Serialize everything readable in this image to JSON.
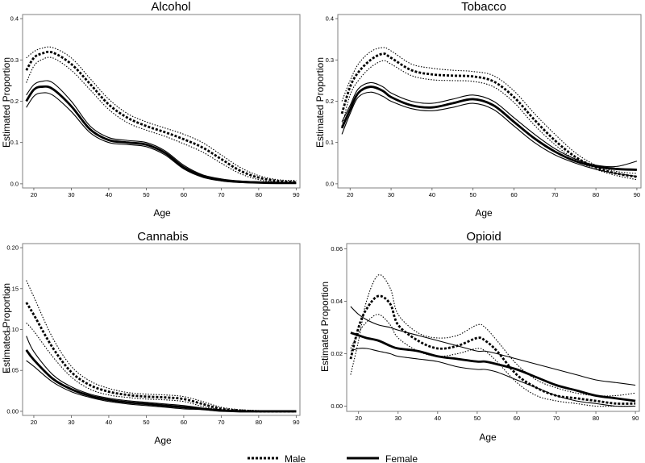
{
  "chart_data": [
    {
      "type": "line",
      "title": "Alcohol",
      "xlabel": "Age",
      "ylabel": "Estimated Proportion",
      "xlim": [
        17,
        91
      ],
      "ylim": [
        -0.01,
        0.41
      ],
      "xticks": [
        20,
        30,
        40,
        50,
        60,
        70,
        80,
        90
      ],
      "yticks": [
        0.0,
        0.1,
        0.2,
        0.3,
        0.4
      ],
      "ytick_labels": [
        "0.0",
        "0.1",
        "0.2",
        "0.3",
        "0.4"
      ],
      "x": [
        18,
        20,
        22,
        25,
        30,
        35,
        40,
        45,
        50,
        55,
        60,
        65,
        70,
        75,
        80,
        85,
        90
      ],
      "series": [
        {
          "name": "Male",
          "band": "upper",
          "values": [
            0.305,
            0.32,
            0.328,
            0.33,
            0.305,
            0.255,
            0.205,
            0.17,
            0.15,
            0.135,
            0.12,
            0.1,
            0.07,
            0.04,
            0.02,
            0.01,
            0.008
          ]
        },
        {
          "name": "Male",
          "band": "estimate",
          "values": [
            0.275,
            0.305,
            0.315,
            0.318,
            0.29,
            0.242,
            0.192,
            0.16,
            0.14,
            0.125,
            0.108,
            0.088,
            0.06,
            0.032,
            0.015,
            0.007,
            0.004
          ]
        },
        {
          "name": "Male",
          "band": "lower",
          "values": [
            0.245,
            0.285,
            0.3,
            0.305,
            0.275,
            0.228,
            0.18,
            0.148,
            0.13,
            0.115,
            0.097,
            0.077,
            0.05,
            0.025,
            0.01,
            0.004,
            0.002
          ]
        },
        {
          "name": "Female",
          "band": "upper",
          "values": [
            0.215,
            0.24,
            0.248,
            0.245,
            0.2,
            0.14,
            0.112,
            0.105,
            0.1,
            0.08,
            0.045,
            0.022,
            0.012,
            0.007,
            0.005,
            0.004,
            0.004
          ]
        },
        {
          "name": "Female",
          "band": "estimate",
          "values": [
            0.2,
            0.228,
            0.235,
            0.23,
            0.188,
            0.132,
            0.106,
            0.1,
            0.095,
            0.075,
            0.04,
            0.019,
            0.009,
            0.005,
            0.003,
            0.002,
            0.002
          ]
        },
        {
          "name": "Female",
          "band": "lower",
          "values": [
            0.185,
            0.212,
            0.22,
            0.215,
            0.175,
            0.124,
            0.1,
            0.095,
            0.09,
            0.07,
            0.036,
            0.016,
            0.007,
            0.003,
            0.002,
            0.001,
            0.001
          ]
        }
      ]
    },
    {
      "type": "line",
      "title": "Tobacco",
      "xlabel": "Age",
      "ylabel": "Estimated Proportion",
      "xlim": [
        17,
        91
      ],
      "ylim": [
        -0.01,
        0.41
      ],
      "xticks": [
        20,
        30,
        40,
        50,
        60,
        70,
        80,
        90
      ],
      "yticks": [
        0.0,
        0.1,
        0.2,
        0.3,
        0.4
      ],
      "ytick_labels": [
        "0.0",
        "0.1",
        "0.2",
        "0.3",
        "0.4"
      ],
      "x": [
        18,
        20,
        22,
        25,
        28,
        30,
        35,
        40,
        45,
        50,
        55,
        60,
        65,
        70,
        75,
        80,
        85,
        90
      ],
      "series": [
        {
          "name": "Male",
          "band": "upper",
          "values": [
            0.2,
            0.25,
            0.29,
            0.32,
            0.33,
            0.322,
            0.29,
            0.28,
            0.275,
            0.272,
            0.262,
            0.225,
            0.17,
            0.12,
            0.075,
            0.045,
            0.03,
            0.025
          ]
        },
        {
          "name": "Male",
          "band": "estimate",
          "values": [
            0.17,
            0.235,
            0.27,
            0.3,
            0.315,
            0.305,
            0.275,
            0.265,
            0.262,
            0.26,
            0.248,
            0.21,
            0.155,
            0.105,
            0.065,
            0.04,
            0.025,
            0.017
          ]
        },
        {
          "name": "Male",
          "band": "lower",
          "values": [
            0.14,
            0.215,
            0.25,
            0.282,
            0.298,
            0.29,
            0.262,
            0.252,
            0.25,
            0.248,
            0.235,
            0.197,
            0.142,
            0.095,
            0.058,
            0.035,
            0.02,
            0.01
          ]
        },
        {
          "name": "Female",
          "band": "upper",
          "values": [
            0.15,
            0.19,
            0.23,
            0.245,
            0.235,
            0.22,
            0.2,
            0.195,
            0.205,
            0.215,
            0.2,
            0.16,
            0.12,
            0.085,
            0.06,
            0.045,
            0.042,
            0.055
          ]
        },
        {
          "name": "Female",
          "band": "estimate",
          "values": [
            0.135,
            0.18,
            0.22,
            0.235,
            0.225,
            0.21,
            0.19,
            0.185,
            0.195,
            0.205,
            0.19,
            0.15,
            0.11,
            0.078,
            0.055,
            0.042,
            0.036,
            0.034
          ]
        },
        {
          "name": "Female",
          "band": "lower",
          "values": [
            0.12,
            0.17,
            0.21,
            0.222,
            0.212,
            0.2,
            0.182,
            0.177,
            0.185,
            0.195,
            0.18,
            0.14,
            0.1,
            0.07,
            0.05,
            0.035,
            0.025,
            0.018
          ]
        }
      ]
    },
    {
      "type": "line",
      "title": "Cannabis",
      "xlabel": "Age",
      "ylabel": "Estimated Proportion",
      "xlim": [
        17,
        91
      ],
      "ylim": [
        -0.005,
        0.205
      ],
      "xticks": [
        20,
        30,
        40,
        50,
        60,
        70,
        80,
        90
      ],
      "yticks": [
        0.0,
        0.05,
        0.1,
        0.15,
        0.2
      ],
      "ytick_labels": [
        "0.00",
        "0.05",
        "0.10",
        "0.15",
        "0.20"
      ],
      "x": [
        18,
        20,
        25,
        30,
        35,
        40,
        45,
        50,
        55,
        60,
        65,
        70,
        75,
        80,
        85,
        90
      ],
      "series": [
        {
          "name": "Male",
          "band": "upper",
          "values": [
            0.16,
            0.14,
            0.09,
            0.055,
            0.037,
            0.028,
            0.023,
            0.021,
            0.02,
            0.018,
            0.012,
            0.005,
            0.002,
            0.001,
            0.0,
            0.0
          ]
        },
        {
          "name": "Male",
          "band": "estimate",
          "values": [
            0.133,
            0.118,
            0.078,
            0.048,
            0.032,
            0.024,
            0.02,
            0.018,
            0.017,
            0.015,
            0.009,
            0.003,
            0.001,
            0.0,
            0.0,
            0.0
          ]
        },
        {
          "name": "Male",
          "band": "lower",
          "values": [
            0.108,
            0.098,
            0.067,
            0.042,
            0.027,
            0.02,
            0.017,
            0.015,
            0.014,
            0.012,
            0.006,
            0.002,
            0.0,
            0.0,
            0.0,
            0.0
          ]
        },
        {
          "name": "Female",
          "band": "upper",
          "values": [
            0.092,
            0.073,
            0.045,
            0.03,
            0.021,
            0.016,
            0.013,
            0.011,
            0.009,
            0.007,
            0.004,
            0.002,
            0.001,
            0.0,
            0.0,
            0.0
          ]
        },
        {
          "name": "Female",
          "band": "estimate",
          "values": [
            0.075,
            0.063,
            0.04,
            0.027,
            0.019,
            0.014,
            0.011,
            0.009,
            0.007,
            0.005,
            0.003,
            0.001,
            0.0,
            0.0,
            0.0,
            0.0
          ]
        },
        {
          "name": "Female",
          "band": "lower",
          "values": [
            0.062,
            0.055,
            0.036,
            0.024,
            0.017,
            0.012,
            0.009,
            0.007,
            0.005,
            0.003,
            0.002,
            0.0,
            0.0,
            0.0,
            0.0,
            0.0
          ]
        }
      ]
    },
    {
      "type": "line",
      "title": "Opioid",
      "xlabel": "Age",
      "ylabel": "Estimated Proportion",
      "xlim": [
        17,
        91
      ],
      "ylim": [
        -0.002,
        0.062
      ],
      "xticks": [
        20,
        30,
        40,
        50,
        60,
        70,
        80,
        90
      ],
      "yticks": [
        0.0,
        0.02,
        0.04,
        0.06
      ],
      "ytick_labels": [
        "0.00",
        "0.02",
        "0.04",
        "0.06"
      ],
      "x": [
        18,
        20,
        22,
        25,
        28,
        30,
        35,
        40,
        45,
        50,
        52,
        55,
        60,
        65,
        70,
        75,
        80,
        85,
        90
      ],
      "series": [
        {
          "name": "Male",
          "band": "upper",
          "values": [
            0.012,
            0.025,
            0.04,
            0.05,
            0.045,
            0.035,
            0.028,
            0.026,
            0.027,
            0.031,
            0.03,
            0.025,
            0.016,
            0.01,
            0.007,
            0.005,
            0.004,
            0.004,
            0.005
          ]
        },
        {
          "name": "Male",
          "band": "estimate",
          "values": [
            0.018,
            0.03,
            0.037,
            0.042,
            0.039,
            0.031,
            0.025,
            0.022,
            0.023,
            0.026,
            0.025,
            0.021,
            0.012,
            0.007,
            0.004,
            0.003,
            0.002,
            0.001,
            0.001
          ]
        },
        {
          "name": "Male",
          "band": "lower",
          "values": [
            0.022,
            0.028,
            0.032,
            0.035,
            0.031,
            0.026,
            0.021,
            0.019,
            0.02,
            0.022,
            0.021,
            0.017,
            0.009,
            0.004,
            0.002,
            0.001,
            0.0,
            0.0,
            0.0
          ]
        },
        {
          "name": "Female",
          "band": "upper",
          "values": [
            0.038,
            0.035,
            0.033,
            0.031,
            0.03,
            0.029,
            0.027,
            0.025,
            0.023,
            0.021,
            0.021,
            0.02,
            0.018,
            0.016,
            0.014,
            0.012,
            0.01,
            0.009,
            0.008
          ]
        },
        {
          "name": "Female",
          "band": "estimate",
          "values": [
            0.028,
            0.027,
            0.026,
            0.025,
            0.023,
            0.022,
            0.021,
            0.019,
            0.018,
            0.017,
            0.017,
            0.016,
            0.014,
            0.011,
            0.008,
            0.006,
            0.004,
            0.003,
            0.002
          ]
        },
        {
          "name": "Female",
          "band": "lower",
          "values": [
            0.021,
            0.022,
            0.022,
            0.021,
            0.02,
            0.019,
            0.018,
            0.017,
            0.015,
            0.014,
            0.014,
            0.013,
            0.01,
            0.007,
            0.004,
            0.002,
            0.001,
            0.0,
            0.0
          ]
        }
      ]
    }
  ],
  "legend": {
    "placement": "bottom-center",
    "entries": [
      {
        "label": "Male",
        "style": "dotted"
      },
      {
        "label": "Female",
        "style": "solid"
      }
    ]
  }
}
